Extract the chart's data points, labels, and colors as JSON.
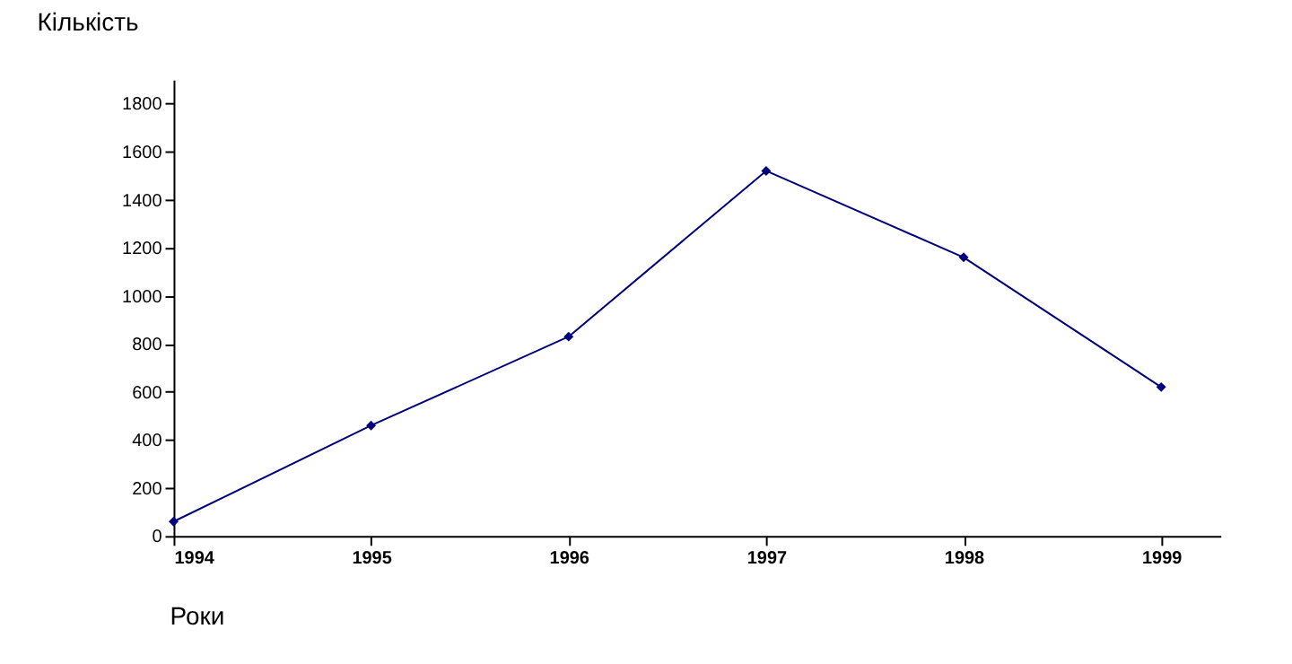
{
  "chart_data": {
    "type": "line",
    "xlabel": "Роки",
    "ylabel": "Кількість",
    "x": [
      1994,
      1995,
      1996,
      1997,
      1998,
      1999
    ],
    "series": [
      {
        "color": "#000080",
        "values": [
          60,
          460,
          830,
          1520,
          1160,
          620
        ]
      }
    ],
    "xlim": [
      1994,
      1999.3
    ],
    "xticks": [
      1994,
      1995,
      1996,
      1997,
      1998,
      1999
    ],
    "ylim": [
      0,
      1900
    ],
    "yticks": [
      0,
      200,
      400,
      600,
      800,
      1000,
      1200,
      1400,
      1600,
      1800
    ],
    "grid": false,
    "marker": "diamond",
    "line_style": "solid"
  }
}
